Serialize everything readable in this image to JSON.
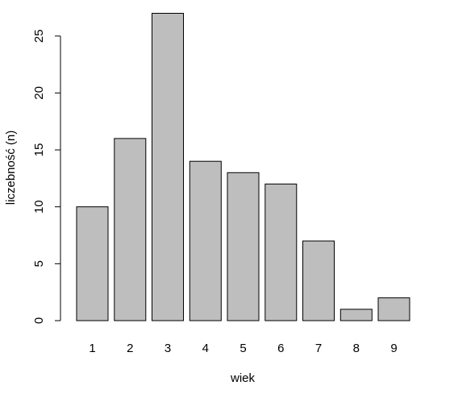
{
  "chart_data": {
    "type": "bar",
    "title": "",
    "xlabel": "wiek",
    "ylabel": "liczebność (n)",
    "categories": [
      "1",
      "2",
      "3",
      "4",
      "5",
      "6",
      "7",
      "8",
      "9"
    ],
    "values": [
      10,
      16,
      27,
      14,
      13,
      12,
      7,
      1,
      2
    ],
    "ylim": [
      0,
      27
    ],
    "yticks": [
      "0",
      "5",
      "10",
      "15",
      "20",
      "25"
    ],
    "bar_color": "#bebebe",
    "border_color": "#000000",
    "grid": false,
    "legend": "none"
  }
}
